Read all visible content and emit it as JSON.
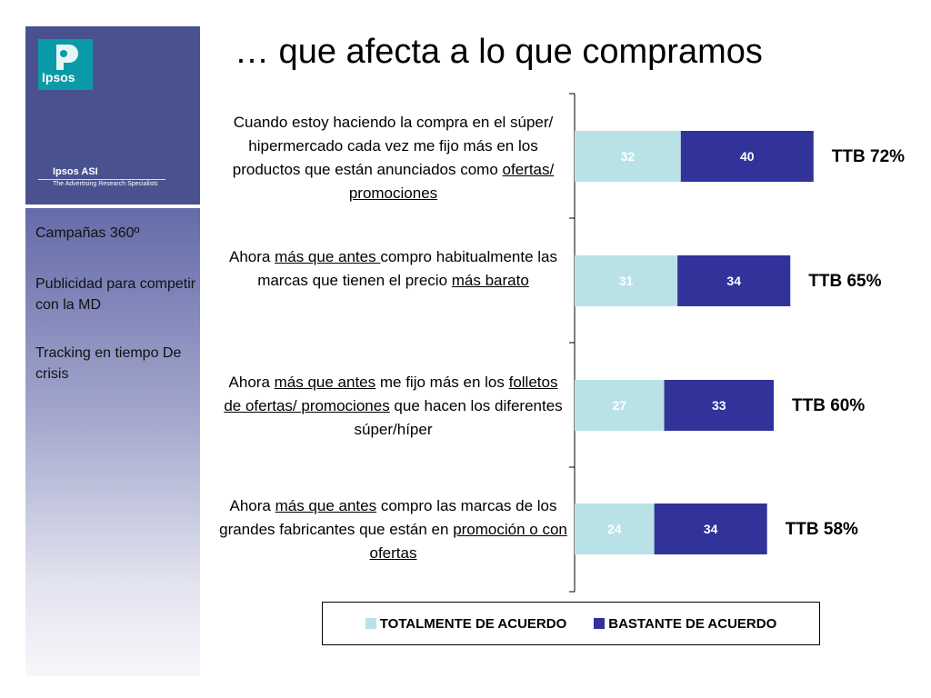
{
  "title": "… que afecta a lo que compramos",
  "sidebar": {
    "logo_text": "Ipsos",
    "brand": "Ipsos ASI",
    "tagline": "The Advertising Research Specialists",
    "items": [
      {
        "label": "Campañas 360º"
      },
      {
        "label": "Publicidad para competir con la MD"
      },
      {
        "label": "Tracking en tiempo De crisis"
      }
    ]
  },
  "statements": [
    {
      "parts": [
        {
          "text": "Cuando estoy haciendo la compra en el súper/ hipermercado cada vez me fijo más en los productos que están anunciados como ",
          "u": false
        },
        {
          "text": "ofertas/ promociones",
          "u": true
        }
      ]
    },
    {
      "parts": [
        {
          "text": "Ahora ",
          "u": false
        },
        {
          "text": "más que antes ",
          "u": true
        },
        {
          "text": "compro habitualmente las marcas que tienen el precio ",
          "u": false
        },
        {
          "text": "más barato",
          "u": true
        }
      ]
    },
    {
      "parts": [
        {
          "text": "Ahora ",
          "u": false
        },
        {
          "text": "más que antes",
          "u": true
        },
        {
          "text": " me fijo más en los ",
          "u": false
        },
        {
          "text": "folletos de ofertas/ promociones",
          "u": true
        },
        {
          "text": " que hacen los diferentes súper/híper",
          "u": false
        }
      ]
    },
    {
      "parts": [
        {
          "text": "Ahora ",
          "u": false
        },
        {
          "text": "más que antes",
          "u": true
        },
        {
          "text": " compro las marcas de los grandes fabricantes que están en ",
          "u": false
        },
        {
          "text": "promoción o con ofertas",
          "u": true
        }
      ]
    }
  ],
  "chart_data": {
    "type": "bar",
    "orientation": "horizontal",
    "stacked": true,
    "categories": [
      "Cuando estoy haciendo la compra en el súper/ hipermercado cada vez me fijo más en los productos que están anunciados como ofertas/ promociones",
      "Ahora más que antes compro habitualmente las marcas que tienen el precio más barato",
      "Ahora más que antes me fijo más en los folletos de ofertas/ promociones que hacen los diferentes súper/híper",
      "Ahora más que antes compro las marcas de los grandes fabricantes que están en promoción o con ofertas"
    ],
    "series": [
      {
        "name": "TOTALMENTE DE ACUERDO",
        "values": [
          32,
          31,
          27,
          24
        ],
        "color": "#b9e2e6"
      },
      {
        "name": "BASTANTE  DE ACUERDO",
        "values": [
          40,
          34,
          33,
          34
        ],
        "color": "#31339a"
      }
    ],
    "totals_labels": [
      "TTB 72%",
      "TTB 65%",
      "TTB 60%",
      "TTB 58%"
    ],
    "legend_position": "bottom",
    "grid": false
  }
}
